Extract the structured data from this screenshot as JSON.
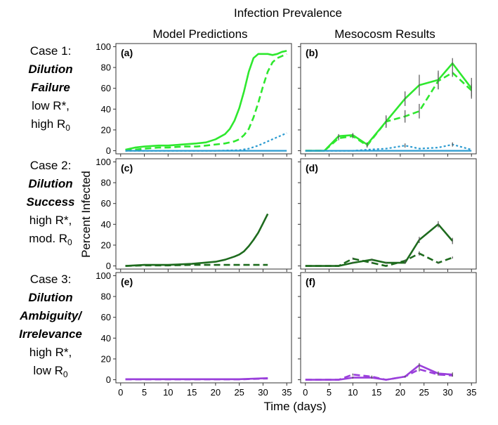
{
  "figure": {
    "title": "Infection Prevalence",
    "column_titles": [
      "Model Predictions",
      "Mesocosm Results"
    ],
    "ylabel": "Percent Infected",
    "xlabel": "Time (days)",
    "cases": [
      {
        "line1": "Case 1:",
        "bold_lines": [
          "Dilution",
          "Failure"
        ],
        "desc1": "low R*,",
        "desc2": "high R",
        "desc2_sub": "0"
      },
      {
        "line1": "Case 2:",
        "bold_lines": [
          "Dilution",
          "Success"
        ],
        "desc1": "high R*,",
        "desc2": "mod. R",
        "desc2_sub": "0"
      },
      {
        "line1": "Case 3:",
        "bold_lines": [
          "Dilution",
          "Ambiguity/",
          "Irrelevance"
        ],
        "desc1": "high R*,",
        "desc2": "low R",
        "desc2_sub": "0"
      }
    ]
  },
  "chart_data": [
    {
      "type": "line",
      "panel": "(a)",
      "xlim": [
        -1,
        36
      ],
      "ylim": [
        -3,
        103
      ],
      "x_ticks": [
        0,
        5,
        10,
        15,
        20,
        25,
        30,
        35
      ],
      "y_ticks": [
        0,
        20,
        40,
        60,
        80,
        100
      ],
      "series": [
        {
          "color": "#2ee82e",
          "dash": "solid",
          "x": [
            1,
            3,
            5,
            8,
            10,
            13,
            16,
            18,
            20,
            22,
            23,
            24,
            25,
            26,
            27,
            28,
            29,
            30,
            31,
            32,
            33,
            34,
            35
          ],
          "y": [
            1,
            3,
            4,
            5,
            5,
            6,
            7,
            8,
            11,
            16,
            21,
            29,
            41,
            57,
            76,
            89,
            93,
            93,
            93,
            92,
            93,
            95,
            96
          ]
        },
        {
          "color": "#2ee82e",
          "dash": "dashed",
          "x": [
            1,
            3,
            5,
            8,
            10,
            13,
            16,
            18,
            20,
            22,
            24,
            25,
            26,
            27,
            28,
            29,
            30,
            31,
            32,
            33,
            34,
            35
          ],
          "y": [
            0,
            1,
            2,
            3,
            3,
            4,
            4,
            5,
            6,
            7,
            9,
            11,
            15,
            21,
            32,
            46,
            62,
            76,
            85,
            89,
            91,
            93
          ]
        },
        {
          "color": "#2b9bd1",
          "dash": "dotted",
          "x": [
            1,
            5,
            10,
            15,
            20,
            25,
            27,
            29,
            31,
            33,
            35
          ],
          "y": [
            0,
            0,
            0,
            0,
            0,
            0.5,
            2,
            5,
            9,
            13,
            17
          ]
        },
        {
          "color": "#2b9bd1",
          "dash": "solid",
          "x": [
            1,
            35
          ],
          "y": [
            0,
            0
          ]
        }
      ]
    },
    {
      "type": "line",
      "panel": "(b)",
      "xlim": [
        -1,
        36
      ],
      "ylim": [
        -3,
        103
      ],
      "x_ticks": [
        0,
        5,
        10,
        15,
        20,
        25,
        30,
        35
      ],
      "y_ticks": [
        0,
        20,
        40,
        60,
        80,
        100
      ],
      "series": [
        {
          "color": "#2ee82e",
          "dash": "solid",
          "x": [
            0,
            4,
            7,
            10,
            13,
            17,
            21,
            24,
            28,
            31,
            35
          ],
          "y": [
            0,
            0,
            14,
            15,
            6,
            28,
            50,
            63,
            68,
            84,
            60
          ],
          "err": [
            0,
            0,
            2,
            2,
            2,
            6,
            7,
            10,
            9,
            5,
            10
          ]
        },
        {
          "color": "#2ee82e",
          "dash": "dashed",
          "x": [
            0,
            4,
            7,
            10,
            13,
            17,
            21,
            24,
            28,
            31,
            35
          ],
          "y": [
            0,
            0,
            12,
            14,
            5,
            28,
            33,
            38,
            67,
            75,
            58
          ],
          "err": [
            0,
            0,
            2,
            2,
            2,
            5,
            6,
            7,
            8,
            4,
            6
          ]
        },
        {
          "color": "#2b9bd1",
          "dash": "dotted",
          "x": [
            0,
            4,
            7,
            10,
            13,
            17,
            21,
            24,
            28,
            31,
            35
          ],
          "y": [
            0,
            0,
            0,
            0,
            1,
            2,
            5,
            2,
            3,
            6,
            1
          ],
          "err": [
            0,
            0,
            0,
            0,
            0,
            0,
            2,
            0,
            0,
            2,
            0
          ]
        },
        {
          "color": "#2b9bd1",
          "dash": "solid",
          "x": [
            0,
            35
          ],
          "y": [
            0,
            0
          ]
        }
      ]
    },
    {
      "type": "line",
      "panel": "(c)",
      "xlim": [
        -1,
        36
      ],
      "ylim": [
        -3,
        103
      ],
      "x_ticks": [
        0,
        5,
        10,
        15,
        20,
        25,
        30,
        35
      ],
      "y_ticks": [
        0,
        20,
        40,
        60,
        80,
        100
      ],
      "series": [
        {
          "color": "#1e6b1e",
          "dash": "solid",
          "x": [
            1,
            5,
            10,
            15,
            20,
            22,
            24,
            25,
            26,
            27,
            28,
            29,
            30,
            31
          ],
          "y": [
            0,
            1,
            1,
            2,
            4,
            6,
            9,
            11,
            14,
            19,
            25,
            32,
            41,
            50
          ]
        },
        {
          "color": "#1e6b1e",
          "dash": "dashed",
          "x": [
            1,
            5,
            10,
            15,
            20,
            25,
            31
          ],
          "y": [
            0,
            0.5,
            0.5,
            1,
            1,
            1,
            1
          ]
        }
      ]
    },
    {
      "type": "line",
      "panel": "(d)",
      "xlim": [
        -1,
        36
      ],
      "ylim": [
        -3,
        103
      ],
      "x_ticks": [
        0,
        5,
        10,
        15,
        20,
        25,
        30,
        35
      ],
      "y_ticks": [
        0,
        20,
        40,
        60,
        80,
        100
      ],
      "series": [
        {
          "color": "#1e6b1e",
          "dash": "solid",
          "x": [
            0,
            7,
            10,
            14,
            17,
            21,
            24,
            28,
            31
          ],
          "y": [
            0,
            0,
            3,
            6,
            3,
            3,
            25,
            40,
            24
          ],
          "err": [
            0,
            0,
            1,
            1,
            1,
            1,
            3,
            3,
            3
          ]
        },
        {
          "color": "#1e6b1e",
          "dash": "dashed",
          "x": [
            0,
            7,
            10,
            14,
            17,
            21,
            24,
            28,
            31
          ],
          "y": [
            0,
            0,
            7,
            3,
            0,
            5,
            12,
            3,
            8
          ],
          "err": [
            0,
            0,
            1,
            1,
            0,
            1,
            2,
            1,
            1
          ]
        }
      ]
    },
    {
      "type": "line",
      "panel": "(e)",
      "xlim": [
        -1,
        36
      ],
      "ylim": [
        -3,
        103
      ],
      "x_ticks": [
        0,
        5,
        10,
        15,
        20,
        25,
        30,
        35
      ],
      "y_ticks": [
        0,
        20,
        40,
        60,
        80,
        100
      ],
      "series": [
        {
          "color": "#9a3fdb",
          "dash": "solid",
          "x": [
            1,
            10,
            20,
            25,
            28,
            31
          ],
          "y": [
            0.5,
            0.5,
            0.5,
            0.5,
            1,
            1.5
          ]
        },
        {
          "color": "#9a3fdb",
          "dash": "dashed",
          "x": [
            1,
            10,
            20,
            25,
            28,
            31
          ],
          "y": [
            0.3,
            0.3,
            0.3,
            0.3,
            0.8,
            1.2
          ]
        }
      ]
    },
    {
      "type": "line",
      "panel": "(f)",
      "xlim": [
        -1,
        36
      ],
      "ylim": [
        -3,
        103
      ],
      "x_ticks": [
        0,
        5,
        10,
        15,
        20,
        25,
        30,
        35
      ],
      "y_ticks": [
        0,
        20,
        40,
        60,
        80,
        100
      ],
      "series": [
        {
          "color": "#9a3fdb",
          "dash": "solid",
          "x": [
            0,
            7,
            10,
            14,
            17,
            21,
            24,
            28,
            31
          ],
          "y": [
            0,
            0,
            2,
            2,
            0,
            3,
            14,
            6,
            5
          ],
          "err": [
            0,
            0,
            1,
            1,
            0,
            1,
            2,
            2,
            2
          ]
        },
        {
          "color": "#9a3fdb",
          "dash": "dashed",
          "x": [
            0,
            7,
            10,
            14,
            17,
            21,
            24,
            28,
            31
          ],
          "y": [
            0,
            0,
            5,
            3,
            0,
            3,
            10,
            5,
            4
          ],
          "err": [
            0,
            0,
            1,
            1,
            0,
            1,
            2,
            1,
            1
          ]
        }
      ]
    }
  ]
}
